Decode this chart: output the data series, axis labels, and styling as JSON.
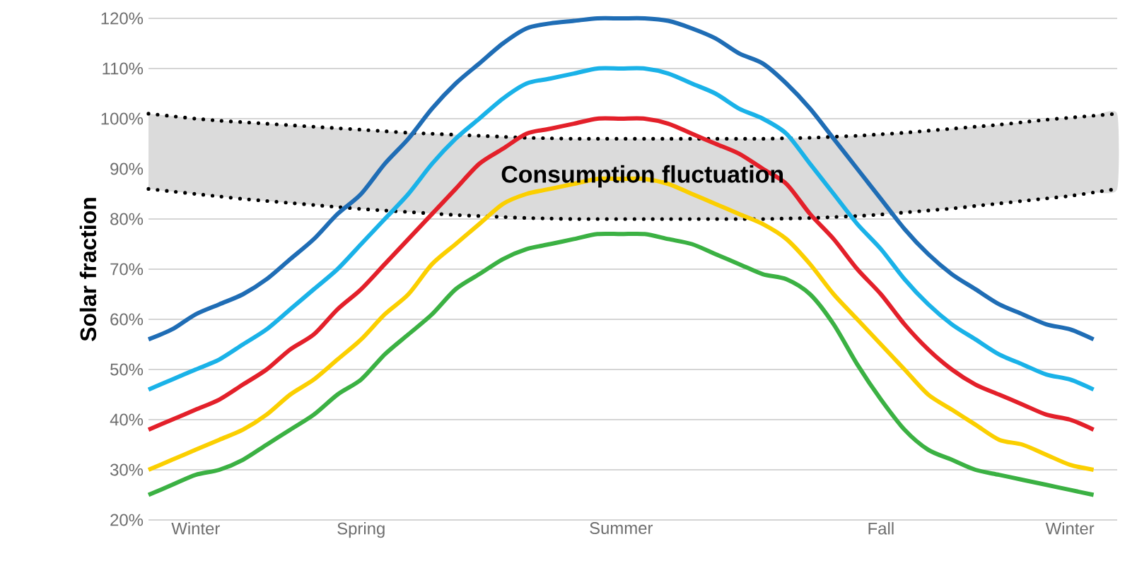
{
  "chart_data": {
    "type": "line",
    "ylabel": "Solar fraction",
    "categories": [
      null,
      null,
      "Winter",
      null,
      null,
      null,
      null,
      null,
      null,
      "Spring",
      null,
      null,
      null,
      null,
      null,
      null,
      null,
      null,
      null,
      null,
      "Summer",
      null,
      null,
      null,
      null,
      null,
      null,
      null,
      null,
      null,
      null,
      "Fall",
      null,
      null,
      null,
      null,
      null,
      null,
      null,
      "Winter",
      null,
      null
    ],
    "ylim": [
      20,
      120
    ],
    "yticks": [
      {
        "value": 20,
        "label": "20%"
      },
      {
        "value": 30,
        "label": "30%"
      },
      {
        "value": 40,
        "label": "40%"
      },
      {
        "value": 50,
        "label": "50%"
      },
      {
        "value": 60,
        "label": "60%"
      },
      {
        "value": 70,
        "label": "70%"
      },
      {
        "value": 80,
        "label": "80%"
      },
      {
        "value": 90,
        "label": "90%"
      },
      {
        "value": 100,
        "label": "100%"
      },
      {
        "value": 110,
        "label": "110%"
      },
      {
        "value": 120,
        "label": "120%"
      }
    ],
    "grid": "y",
    "marker": "none",
    "line_style": "solid",
    "series": [
      {
        "color": "#000000",
        "line_style": "dotted",
        "values": [
          101,
          100.5,
          100,
          99.6,
          99.3,
          99,
          98.7,
          98.4,
          98.1,
          97.8,
          97.5,
          97.2,
          97,
          96.8,
          96.6,
          96.4,
          96.2,
          96.1,
          96,
          96,
          96,
          96,
          96,
          96,
          96,
          96,
          96,
          96.1,
          96.2,
          96.4,
          96.6,
          96.9,
          97.2,
          97.6,
          98,
          98.4,
          98.8,
          99.3,
          99.8,
          100.2,
          100.6,
          101
        ],
        "lower": [
          86,
          85.5,
          85,
          84.5,
          84,
          83.6,
          83.2,
          82.8,
          82.4,
          82,
          81.7,
          81.4,
          81.1,
          80.8,
          80.6,
          80.4,
          80.2,
          80.1,
          80,
          80,
          80,
          80,
          80,
          80,
          80,
          80,
          80,
          80.1,
          80.2,
          80.4,
          80.6,
          80.9,
          81.3,
          81.7,
          82.1,
          82.6,
          83.1,
          83.6,
          84.1,
          84.6,
          85.3,
          86
        ],
        "upper": [
          101,
          100.5,
          100,
          99.6,
          99.3,
          99,
          98.7,
          98.4,
          98.1,
          97.8,
          97.5,
          97.2,
          97,
          96.8,
          96.6,
          96.4,
          96.2,
          96.1,
          96,
          96,
          96,
          96,
          96,
          96,
          96,
          96,
          96,
          96.1,
          96.2,
          96.4,
          96.6,
          96.9,
          97.2,
          97.6,
          98,
          98.4,
          98.8,
          99.3,
          99.8,
          100.2,
          100.6,
          101
        ]
      },
      {
        "color": "#000000",
        "line_style": "dotted",
        "values": [
          86,
          85.5,
          85,
          84.5,
          84,
          83.6,
          83.2,
          82.8,
          82.4,
          82,
          81.7,
          81.4,
          81.1,
          80.8,
          80.6,
          80.4,
          80.2,
          80.1,
          80,
          80,
          80,
          80,
          80,
          80,
          80,
          80,
          80,
          80.1,
          80.2,
          80.4,
          80.6,
          80.9,
          81.3,
          81.7,
          82.1,
          82.6,
          83.1,
          83.6,
          84.1,
          84.6,
          85.3,
          86
        ]
      },
      {
        "color": "#1f6db5",
        "values": [
          56,
          58,
          61,
          63,
          65,
          68,
          72,
          76,
          81,
          85,
          91,
          96,
          102,
          107,
          111,
          115,
          118,
          119,
          119.5,
          120,
          120,
          120,
          119.5,
          118,
          116,
          113,
          111,
          107,
          102,
          96,
          90,
          84,
          78,
          73,
          69,
          66,
          63,
          61,
          59,
          58,
          56,
          null
        ]
      },
      {
        "color": "#1ab2e8",
        "values": [
          46,
          48,
          50,
          52,
          55,
          58,
          62,
          66,
          70,
          75,
          80,
          85,
          91,
          96,
          100,
          104,
          107,
          108,
          109,
          110,
          110,
          110,
          109,
          107,
          105,
          102,
          100,
          97,
          91,
          85,
          79,
          74,
          68,
          63,
          59,
          56,
          53,
          51,
          49,
          48,
          46,
          null
        ]
      },
      {
        "color": "#e3202a",
        "values": [
          38,
          40,
          42,
          44,
          47,
          50,
          54,
          57,
          62,
          66,
          71,
          76,
          81,
          86,
          91,
          94,
          97,
          98,
          99,
          100,
          100,
          100,
          99,
          97,
          95,
          93,
          90,
          87,
          81,
          76,
          70,
          65,
          59,
          54,
          50,
          47,
          45,
          43,
          41,
          40,
          38,
          null
        ]
      },
      {
        "color": "#fbcf00",
        "values": [
          30,
          32,
          34,
          36,
          38,
          41,
          45,
          48,
          52,
          56,
          61,
          65,
          71,
          75,
          79,
          83,
          85,
          86,
          87,
          88,
          88,
          88,
          87,
          85,
          83,
          81,
          79,
          76,
          71,
          65,
          60,
          55,
          50,
          45,
          42,
          39,
          36,
          35,
          33,
          31,
          30,
          null
        ]
      },
      {
        "color": "#3bb143",
        "values": [
          25,
          27,
          29,
          30,
          32,
          35,
          38,
          41,
          45,
          48,
          53,
          57,
          61,
          66,
          69,
          72,
          74,
          75,
          76,
          77,
          77,
          77,
          76,
          75,
          73,
          71,
          69,
          68,
          65,
          59,
          51,
          44,
          38,
          34,
          32,
          30,
          29,
          28,
          27,
          26,
          25,
          null
        ]
      }
    ],
    "annotations": [
      "Consumption fluctuation"
    ]
  }
}
